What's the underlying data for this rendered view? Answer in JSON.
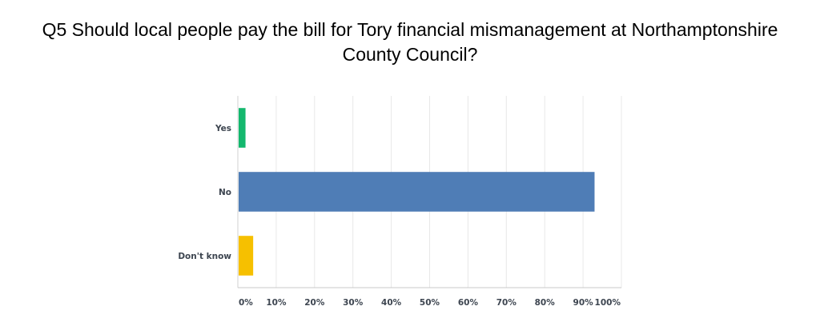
{
  "chart_data": {
    "type": "bar",
    "orientation": "horizontal",
    "title_lines": [
      "Q5 Should local people pay the bill for Tory financial mismanagement at Northamptonshire",
      "County Council?"
    ],
    "categories": [
      "Yes",
      "No",
      "Don't know"
    ],
    "values": [
      2.0,
      93.0,
      4.0
    ],
    "colors": [
      "#14b86e",
      "#4f7db6",
      "#f6c000"
    ],
    "xlim": [
      0,
      100
    ],
    "xticks": [
      "0%",
      "10%",
      "20%",
      "30%",
      "40%",
      "50%",
      "60%",
      "70%",
      "80%",
      "90%",
      "100%"
    ],
    "grid": true,
    "legend": "none"
  }
}
